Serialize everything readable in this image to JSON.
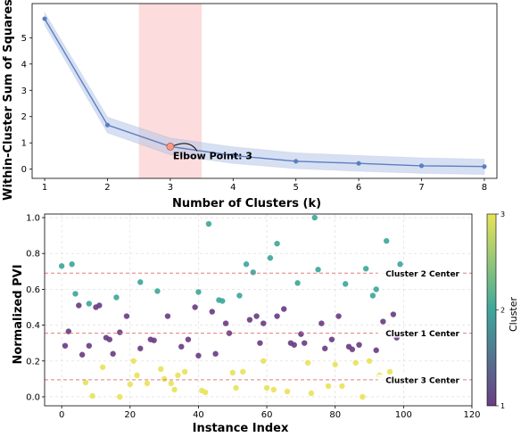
{
  "chart_data": [
    {
      "type": "line",
      "xlabel": "Number of Clusters (k)",
      "ylabel": "Within-Cluster Sum of Squares",
      "xlim": [
        0.8,
        8.2
      ],
      "ylim": [
        -0.35,
        6.3
      ],
      "xticks": [
        1,
        2,
        3,
        4,
        5,
        6,
        7,
        8
      ],
      "yticks": [
        0,
        1,
        2,
        3,
        4,
        5
      ],
      "x": [
        1,
        2,
        3,
        4,
        5,
        6,
        7,
        8
      ],
      "y": [
        5.72,
        1.68,
        0.86,
        0.52,
        0.3,
        0.22,
        0.13,
        0.1
      ],
      "band_upper": [
        5.95,
        1.98,
        1.18,
        0.85,
        0.62,
        0.52,
        0.43,
        0.38
      ],
      "band_lower": [
        5.48,
        1.38,
        0.55,
        0.22,
        0.02,
        -0.08,
        -0.16,
        -0.2
      ],
      "highlight_span": [
        2.5,
        3.5
      ],
      "elbow_point": {
        "x": 3,
        "y": 0.86
      },
      "annotation": "Elbow Point: 3",
      "colors": {
        "line": "#5b7fc2",
        "band": "#b7c7e8",
        "span": "#fbd3d3",
        "elbow": "#f29c87"
      }
    },
    {
      "type": "scatter",
      "xlabel": "Instance Index",
      "ylabel": "Normalized PVI",
      "xlim": [
        -5,
        120
      ],
      "ylim": [
        -0.05,
        1.02
      ],
      "xticks": [
        0,
        20,
        40,
        60,
        80,
        100,
        120
      ],
      "yticks": [
        0.0,
        0.2,
        0.4,
        0.6,
        0.8,
        1.0
      ],
      "xtick_labels": [
        "0",
        "20",
        "40",
        "60",
        "80",
        "100",
        "120"
      ],
      "ytick_labels": [
        "0.0",
        "0.2",
        "0.4",
        "0.6",
        "0.8",
        "1.0"
      ],
      "centers": [
        {
          "label": "Cluster 2 Center",
          "y": 0.69
        },
        {
          "label": "Cluster 1 Center",
          "y": 0.355
        },
        {
          "label": "Cluster 3 Center",
          "y": 0.095
        }
      ],
      "series": [
        {
          "cluster": 2,
          "color": "#3fa79a",
          "points": [
            [
              0,
              0.73
            ],
            [
              3,
              0.74
            ],
            [
              4,
              0.575
            ],
            [
              8,
              0.52
            ],
            [
              16,
              0.555
            ],
            [
              23,
              0.64
            ],
            [
              28,
              0.59
            ],
            [
              40,
              0.585
            ],
            [
              43,
              0.965
            ],
            [
              46,
              0.54
            ],
            [
              47,
              0.535
            ],
            [
              52,
              0.565
            ],
            [
              54,
              0.74
            ],
            [
              56,
              0.695
            ],
            [
              61,
              0.775
            ],
            [
              63,
              0.855
            ],
            [
              69,
              0.635
            ],
            [
              74,
              1.0
            ],
            [
              75,
              0.71
            ],
            [
              83,
              0.63
            ],
            [
              89,
              0.715
            ],
            [
              91,
              0.565
            ],
            [
              92,
              0.6
            ],
            [
              95,
              0.87
            ],
            [
              99,
              0.74
            ]
          ]
        },
        {
          "cluster": 1,
          "color": "#6b3e84",
          "points": [
            [
              1,
              0.285
            ],
            [
              2,
              0.365
            ],
            [
              5,
              0.51
            ],
            [
              6,
              0.235
            ],
            [
              8,
              0.285
            ],
            [
              10,
              0.5
            ],
            [
              11,
              0.51
            ],
            [
              13,
              0.33
            ],
            [
              14,
              0.32
            ],
            [
              15,
              0.24
            ],
            [
              17,
              0.36
            ],
            [
              19,
              0.45
            ],
            [
              23,
              0.27
            ],
            [
              26,
              0.32
            ],
            [
              27,
              0.315
            ],
            [
              31,
              0.45
            ],
            [
              35,
              0.28
            ],
            [
              37,
              0.32
            ],
            [
              39,
              0.5
            ],
            [
              40,
              0.23
            ],
            [
              44,
              0.475
            ],
            [
              45,
              0.24
            ],
            [
              48,
              0.41
            ],
            [
              49,
              0.355
            ],
            [
              55,
              0.43
            ],
            [
              57,
              0.45
            ],
            [
              58,
              0.3
            ],
            [
              59,
              0.41
            ],
            [
              63,
              0.45
            ],
            [
              65,
              0.49
            ],
            [
              67,
              0.3
            ],
            [
              68,
              0.29
            ],
            [
              70,
              0.35
            ],
            [
              71,
              0.3
            ],
            [
              76,
              0.41
            ],
            [
              77,
              0.27
            ],
            [
              79,
              0.32
            ],
            [
              81,
              0.45
            ],
            [
              84,
              0.28
            ],
            [
              85,
              0.265
            ],
            [
              87,
              0.29
            ],
            [
              92,
              0.26
            ],
            [
              94,
              0.42
            ],
            [
              97,
              0.46
            ],
            [
              98,
              0.33
            ]
          ]
        },
        {
          "cluster": 3,
          "color": "#e8e35a",
          "points": [
            [
              7,
              0.08
            ],
            [
              9,
              0.005
            ],
            [
              12,
              0.165
            ],
            [
              17,
              0.0
            ],
            [
              20,
              0.07
            ],
            [
              21,
              0.2
            ],
            [
              22,
              0.12
            ],
            [
              25,
              0.075
            ],
            [
              29,
              0.155
            ],
            [
              30,
              0.1
            ],
            [
              32,
              0.075
            ],
            [
              33,
              0.04
            ],
            [
              34,
              0.12
            ],
            [
              36,
              0.14
            ],
            [
              41,
              0.035
            ],
            [
              42,
              0.025
            ],
            [
              50,
              0.135
            ],
            [
              51,
              0.05
            ],
            [
              53,
              0.14
            ],
            [
              59,
              0.2
            ],
            [
              60,
              0.05
            ],
            [
              62,
              0.04
            ],
            [
              66,
              0.03
            ],
            [
              72,
              0.19
            ],
            [
              73,
              0.02
            ],
            [
              78,
              0.06
            ],
            [
              80,
              0.18
            ],
            [
              82,
              0.06
            ],
            [
              86,
              0.19
            ],
            [
              88,
              0.0
            ],
            [
              90,
              0.2
            ],
            [
              93,
              0.12
            ],
            [
              96,
              0.14
            ]
          ]
        }
      ],
      "colorbar": {
        "label": "Cluster",
        "range": [
          1,
          3
        ],
        "ticks": [
          "1",
          "2",
          "3"
        ],
        "gradient": [
          "#6b3e84",
          "#3fa79a",
          "#e8e35a"
        ]
      }
    }
  ]
}
